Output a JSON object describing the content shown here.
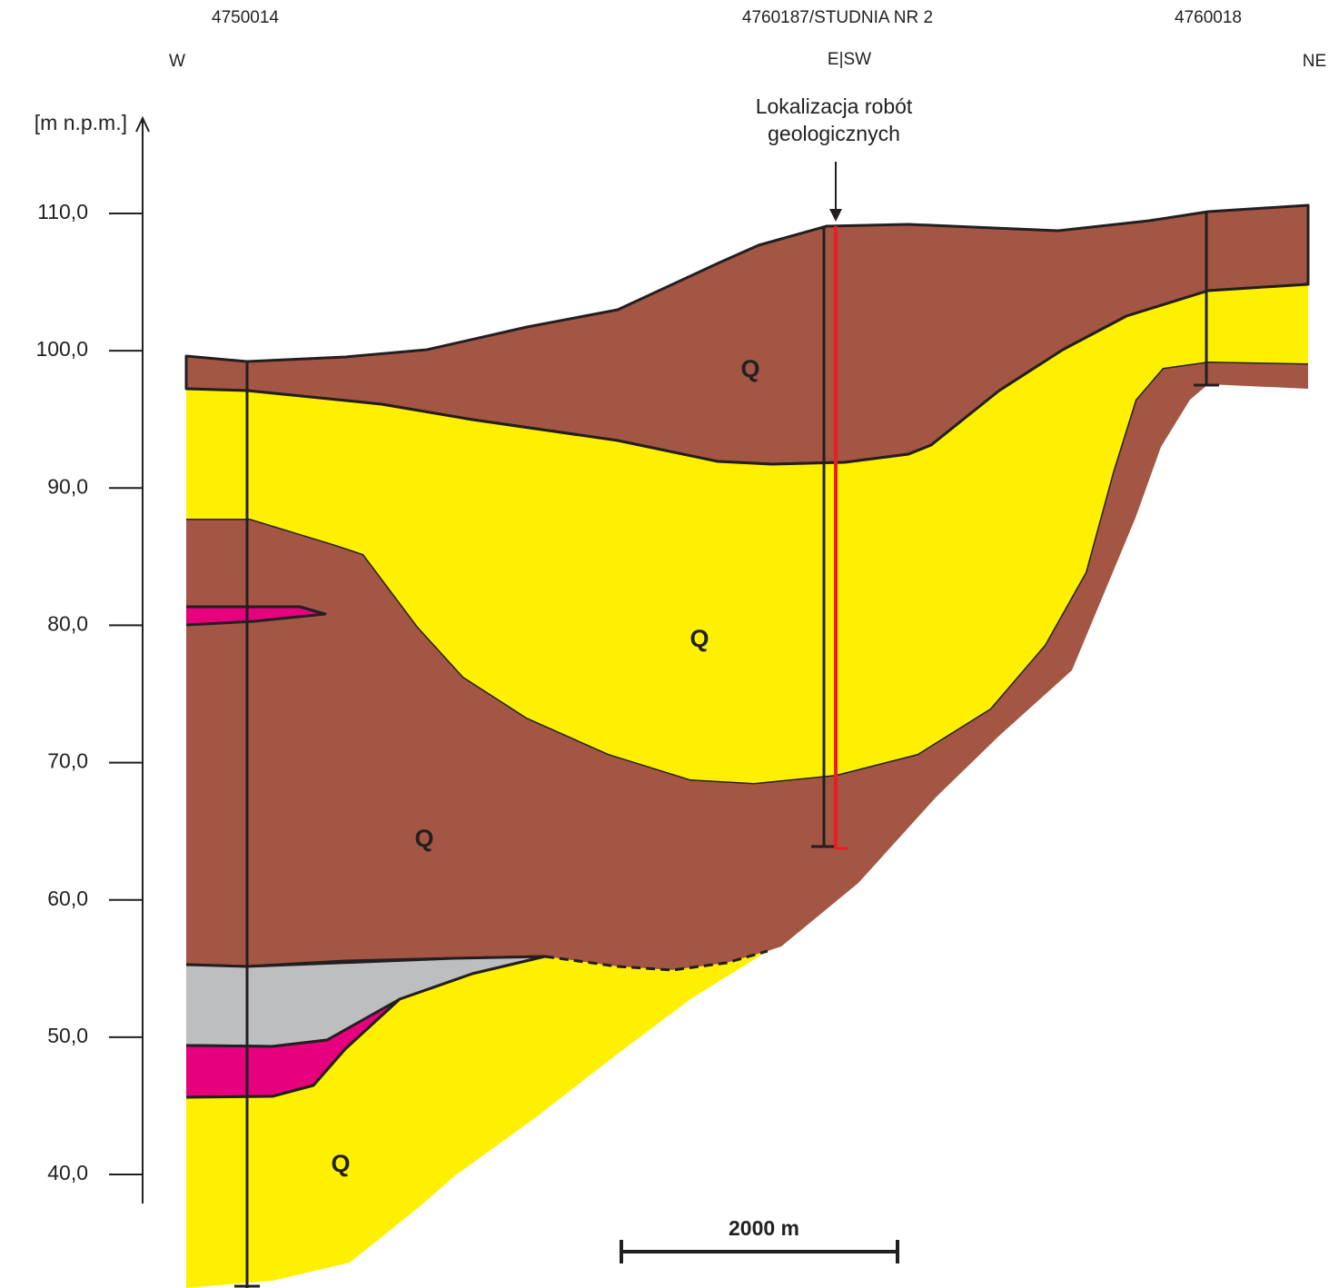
{
  "header": {
    "boreholes": [
      "4750014",
      "4760187/STUDNIA NR 2",
      "4760018"
    ],
    "directions": [
      "W",
      "E|SW",
      "NE"
    ]
  },
  "axis": {
    "label": "[m n.p.m.]",
    "ticks": [
      {
        "value": 110,
        "label": "110,0"
      },
      {
        "value": 100,
        "label": "100,0"
      },
      {
        "value": 90,
        "label": "90,0"
      },
      {
        "value": 80,
        "label": "80,0"
      },
      {
        "value": 70,
        "label": "70,0"
      },
      {
        "value": 60,
        "label": "60,0"
      },
      {
        "value": 50,
        "label": "50,0"
      },
      {
        "value": 40,
        "label": "40,0"
      }
    ]
  },
  "annotation": [
    "Lokalizacja robót",
    "geologicznych"
  ],
  "units": [
    "Q",
    "Q",
    "Q",
    "Q"
  ],
  "scale_bar": "2000 m"
}
